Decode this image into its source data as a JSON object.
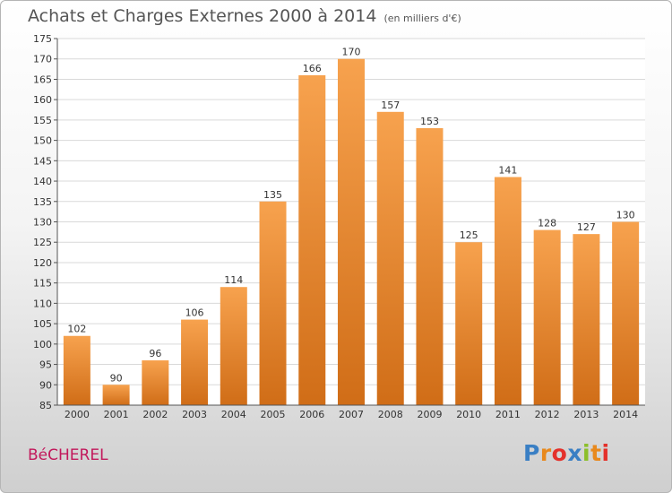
{
  "header": {
    "title": "Achats et Charges Externes 2000 à 2014",
    "subtitle": "(en milliers d'€)"
  },
  "footer": {
    "commune": "BéCHEREL",
    "logo": [
      "P",
      "r",
      "o",
      "x",
      "i",
      "t",
      "i"
    ]
  },
  "chart_data": {
    "type": "bar",
    "title": "Achats et Charges Externes 2000 à 2014",
    "subtitle": "(en milliers d'€)",
    "categories": [
      "2000",
      "2001",
      "2002",
      "2003",
      "2004",
      "2005",
      "2006",
      "2007",
      "2008",
      "2009",
      "2010",
      "2011",
      "2012",
      "2013",
      "2014"
    ],
    "values": [
      102,
      90,
      96,
      106,
      114,
      135,
      166,
      170,
      157,
      153,
      125,
      141,
      128,
      127,
      130
    ],
    "data_labels": [
      "102",
      "90",
      "96",
      "106",
      "114",
      "135",
      "166",
      "170",
      "157",
      "153",
      "125",
      "141",
      "128",
      "127",
      "130"
    ],
    "yticks": [
      85,
      90,
      95,
      100,
      105,
      110,
      115,
      120,
      125,
      130,
      135,
      140,
      145,
      150,
      155,
      160,
      165,
      170,
      175
    ],
    "ylim": [
      85,
      175
    ],
    "xlabel": "",
    "ylabel": "",
    "grid": true,
    "colors": {
      "bar_top": "#f7a24e",
      "bar_bottom": "#d06d17",
      "grid": "#d9d9d9"
    }
  }
}
